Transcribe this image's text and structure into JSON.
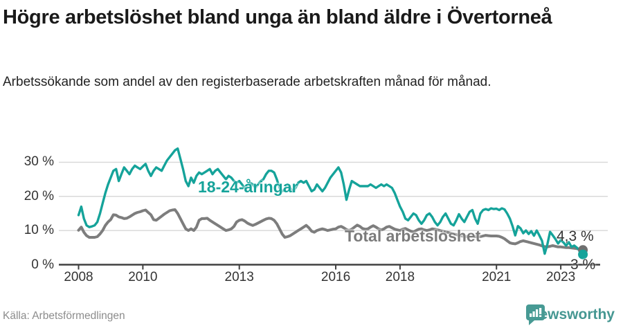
{
  "header": {
    "title": "Högre arbetslöshet bland unga än bland äldre i Övertorneå",
    "subtitle": "Arbetssökande som andel av den registerbaserade arbetskraften månad för månad."
  },
  "chart_data": {
    "type": "line",
    "unit": "%",
    "frequency": "monthly",
    "x_start": "2008-01",
    "x_end": "2023-09",
    "grid": "horizontal",
    "ylim": [
      0,
      36
    ],
    "y_ticks": [
      0,
      10,
      20,
      30
    ],
    "y_tick_labels": [
      "0 %",
      "10 %",
      "20 %",
      "30 %"
    ],
    "x_tick_labels": [
      "2008",
      "2010",
      "2013",
      "2016",
      "2018",
      "2021",
      "2023"
    ],
    "x_tick_year_offsets": [
      0,
      2,
      5,
      8,
      10,
      13,
      15
    ],
    "axis_color": "#404040",
    "grid_color": "#d9d9d9",
    "series": [
      {
        "name": "18-24-åringar",
        "color": "#15a39a",
        "end_label": "3 %",
        "end_value": 3.0,
        "values": [
          14.5,
          17.0,
          13.5,
          11.5,
          11.0,
          11.2,
          11.5,
          12.5,
          15.0,
          18.0,
          21.0,
          23.5,
          25.5,
          27.5,
          28.0,
          24.5,
          26.5,
          28.5,
          27.5,
          26.5,
          28.0,
          29.0,
          28.5,
          28.0,
          28.8,
          29.5,
          27.5,
          26.0,
          27.5,
          28.5,
          28.0,
          27.5,
          29.0,
          30.5,
          31.5,
          32.5,
          33.5,
          34.0,
          31.0,
          28.0,
          24.5,
          23.0,
          25.5,
          24.0,
          26.0,
          27.0,
          26.5,
          27.0,
          27.5,
          28.0,
          26.5,
          27.5,
          28.0,
          27.0,
          26.0,
          25.0,
          26.0,
          25.5,
          24.5,
          24.0,
          24.5,
          23.5,
          22.5,
          23.0,
          24.0,
          23.5,
          22.5,
          23.5,
          24.5,
          25.0,
          26.5,
          27.5,
          27.5,
          27.0,
          25.0,
          22.5,
          21.5,
          22.0,
          23.5,
          22.5,
          21.5,
          22.5,
          24.0,
          24.5,
          24.0,
          24.5,
          23.0,
          21.5,
          22.0,
          23.5,
          22.5,
          21.5,
          22.5,
          24.0,
          25.5,
          26.5,
          27.5,
          28.5,
          27.0,
          23.5,
          19.0,
          22.0,
          24.5,
          24.0,
          23.5,
          23.0,
          23.0,
          23.0,
          23.0,
          23.5,
          23.0,
          22.5,
          23.0,
          23.5,
          23.0,
          23.5,
          23.0,
          22.5,
          21.0,
          19.0,
          17.0,
          15.5,
          13.5,
          13.0,
          14.0,
          15.0,
          14.5,
          13.0,
          12.0,
          13.0,
          14.5,
          15.0,
          14.0,
          12.5,
          11.5,
          12.5,
          14.0,
          15.0,
          13.5,
          12.0,
          11.5,
          13.0,
          14.8,
          13.5,
          12.5,
          14.0,
          15.5,
          16.0,
          13.5,
          12.0,
          15.0,
          16.0,
          16.3,
          16.0,
          16.5,
          16.3,
          16.4,
          16.0,
          16.5,
          16.2,
          15.0,
          13.5,
          11.3,
          8.6,
          11.3,
          10.6,
          9.2,
          10.0,
          9.0,
          9.8,
          8.5,
          10.0,
          8.6,
          7.0,
          3.2,
          6.0,
          9.6,
          8.6,
          7.5,
          6.2,
          7.2,
          6.5,
          5.6,
          6.6,
          5.2,
          5.6,
          5.0,
          4.2,
          3.0
        ]
      },
      {
        "name": "Total arbetslöshet",
        "color": "#7d7d7d",
        "end_label": "4,3 %",
        "end_value": 4.3,
        "values": [
          10.1,
          11.0,
          9.5,
          8.5,
          8.0,
          8.0,
          8.0,
          8.2,
          9.0,
          10.0,
          11.5,
          12.5,
          13.2,
          14.6,
          14.5,
          14.0,
          13.8,
          13.5,
          13.6,
          14.0,
          14.5,
          15.0,
          15.3,
          15.5,
          15.8,
          16.0,
          15.3,
          14.6,
          13.2,
          13.0,
          13.6,
          14.2,
          14.8,
          15.3,
          15.8,
          16.0,
          16.1,
          15.0,
          13.5,
          12.0,
          10.5,
          10.0,
          10.5,
          10.0,
          11.0,
          13.0,
          13.5,
          13.5,
          13.6,
          13.0,
          12.5,
          12.0,
          11.5,
          11.0,
          10.5,
          10.0,
          10.2,
          10.5,
          11.2,
          12.5,
          13.0,
          13.2,
          12.8,
          12.2,
          11.8,
          11.5,
          11.8,
          12.2,
          12.6,
          13.0,
          13.4,
          13.6,
          13.5,
          13.0,
          12.0,
          10.5,
          9.0,
          8.0,
          8.2,
          8.5,
          9.0,
          9.5,
          10.0,
          10.5,
          11.0,
          11.5,
          10.8,
          9.8,
          9.5,
          10.0,
          10.3,
          10.5,
          10.3,
          10.0,
          10.2,
          10.4,
          10.5,
          11.0,
          11.2,
          10.8,
          10.3,
          10.0,
          10.4,
          11.0,
          11.6,
          11.2,
          10.6,
          10.4,
          10.5,
          11.0,
          11.4,
          11.0,
          10.5,
          10.2,
          10.5,
          11.0,
          11.2,
          10.8,
          10.4,
          10.2,
          10.0,
          10.4,
          10.6,
          10.2,
          9.8,
          9.6,
          10.0,
          10.4,
          10.5,
          10.2,
          10.0,
          10.2,
          10.5,
          10.4,
          10.2,
          10.0,
          9.8,
          9.6,
          9.4,
          9.2,
          9.0,
          8.8,
          8.6,
          8.4,
          8.3,
          8.2,
          8.2,
          8.3,
          8.2,
          8.2,
          8.2,
          8.4,
          8.6,
          8.5,
          8.4,
          8.4,
          8.4,
          8.3,
          8.0,
          7.6,
          7.0,
          6.4,
          6.2,
          6.1,
          6.4,
          6.8,
          7.0,
          6.8,
          6.6,
          6.4,
          6.2,
          6.0,
          5.8,
          5.5,
          5.3,
          5.2,
          5.4,
          5.6,
          5.4,
          5.2,
          5.2,
          5.1,
          5.0,
          5.0,
          4.9,
          4.8,
          4.7,
          4.5,
          4.3
        ]
      }
    ]
  },
  "footer": {
    "source": "Källa: Arbetsförmedlingen",
    "brand_name": "Newsworthy",
    "brand_color": "#459792"
  }
}
